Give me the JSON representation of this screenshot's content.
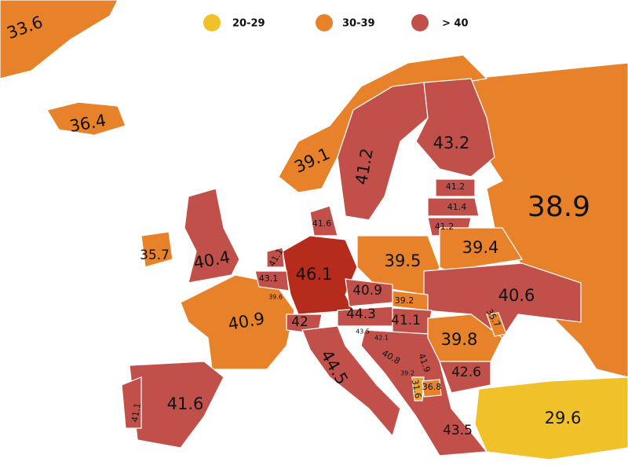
{
  "legend": [
    "20-29",
    "30-39",
    "> 40"
  ],
  "regions": [
    "33.6",
    "36.4",
    "39.1",
    "41.2",
    "43.2",
    "38.9",
    "41.2",
    "41.4",
    "41.2",
    "41.6",
    "40.4",
    "35.7",
    "39.5",
    "39.4",
    "41.1",
    "43.1",
    "39.6",
    "46.1",
    "40.9",
    "39.2",
    "40.6",
    "40.9",
    "42",
    "44.3",
    "41.1",
    "35.7",
    "43.5",
    "42.1",
    "39.8",
    "40.8",
    "41.9",
    "44.5",
    "39.2",
    "31.6",
    "36.8",
    "42.6",
    "41.6",
    "41.1",
    "43.5",
    "29.6"
  ]
}
